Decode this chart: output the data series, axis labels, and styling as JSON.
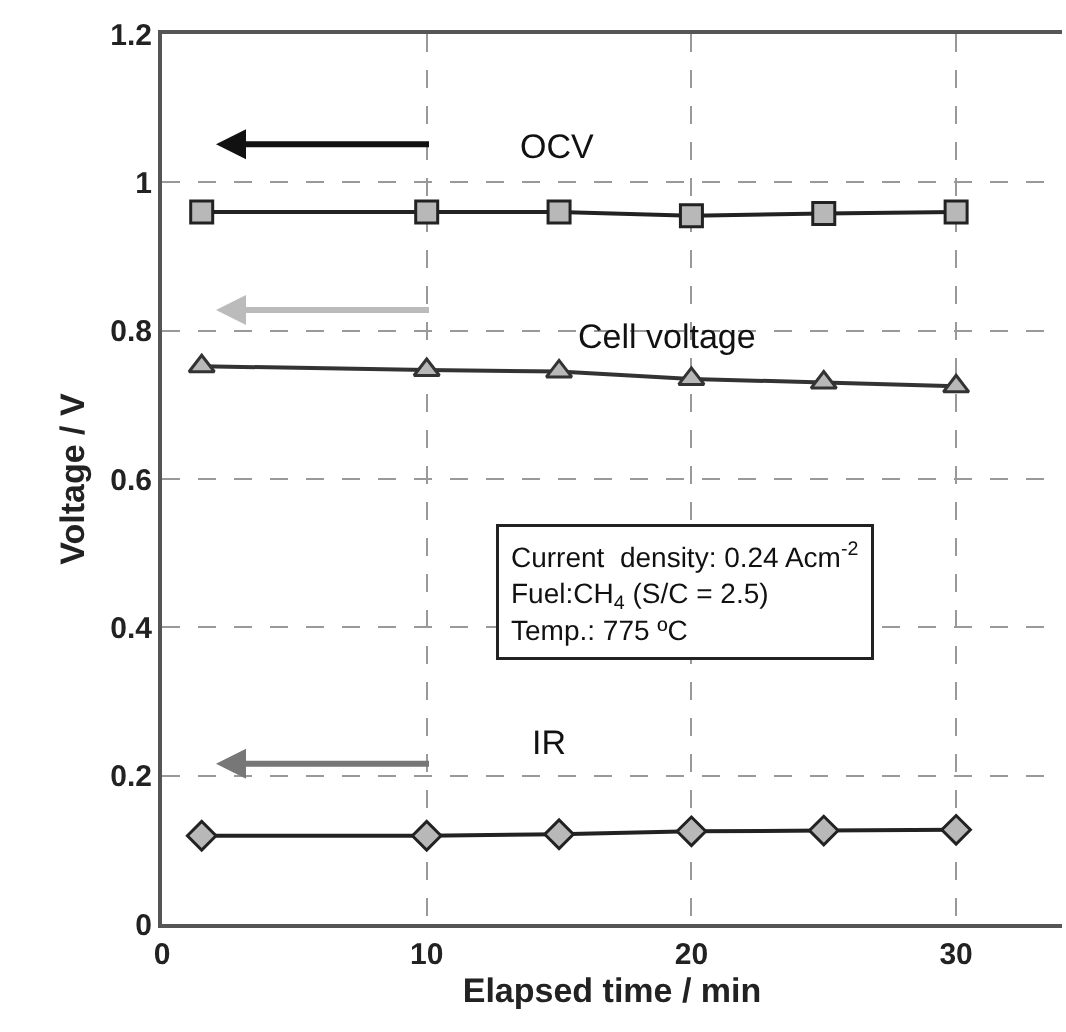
{
  "chart_data": {
    "type": "line",
    "xlabel": "Elapsed time / min",
    "ylabel": "Voltage / V",
    "x": [
      1.5,
      10,
      15,
      20,
      25,
      30
    ],
    "series": [
      {
        "color": "#222222",
        "marker": "square",
        "values": [
          0.96,
          0.96,
          0.96,
          0.955,
          0.958,
          0.96
        ]
      },
      {
        "color": "#333333",
        "marker": "triangle",
        "values": [
          0.752,
          0.747,
          0.745,
          0.735,
          0.73,
          0.725
        ]
      },
      {
        "color": "#222222",
        "marker": "diamond",
        "values": [
          0.119,
          0.119,
          0.121,
          0.125,
          0.126,
          0.127
        ]
      }
    ],
    "xlim": [
      0,
      34
    ],
    "xticks": [
      0,
      10,
      20,
      30
    ],
    "ylim": [
      0,
      1.2
    ],
    "yticks": [
      0,
      0.2,
      0.4,
      0.6,
      0.8,
      1,
      1.2
    ],
    "grid": true,
    "line_style": "solid",
    "annotations": [
      "OCV",
      "Cell voltage",
      "IR",
      "Current  density: 0.24 Acm$^{-2}$\nFuel:CH$_{4}$ (S/C = 2.5)\nTemp.: 775 ºC"
    ]
  }
}
